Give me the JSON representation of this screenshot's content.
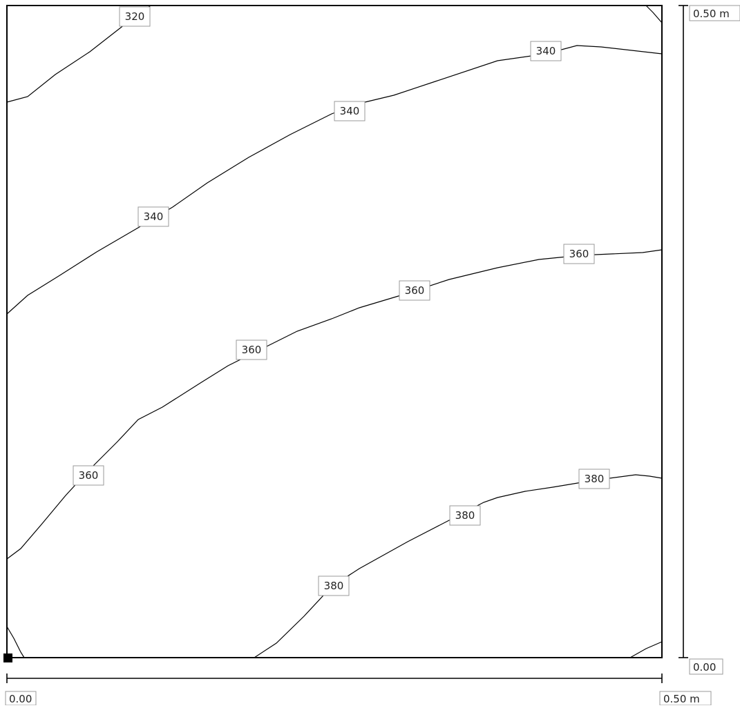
{
  "contours": [
    {
      "id": "c320-top",
      "label": "320",
      "points": [
        [
          10,
          148
        ],
        [
          40,
          140
        ],
        [
          80,
          108
        ],
        [
          130,
          75
        ],
        [
          185,
          32
        ],
        [
          218,
          8
        ]
      ],
      "label_pos": [
        195,
        24
      ]
    },
    {
      "id": "c340-upper",
      "label": "340",
      "points": [
        [
          10,
          455
        ],
        [
          40,
          428
        ],
        [
          85,
          400
        ],
        [
          140,
          365
        ],
        [
          200,
          330
        ],
        [
          250,
          300
        ],
        [
          300,
          265
        ],
        [
          360,
          228
        ],
        [
          420,
          195
        ],
        [
          480,
          165
        ],
        [
          520,
          150
        ],
        [
          570,
          138
        ],
        [
          630,
          118
        ],
        [
          720,
          88
        ],
        [
          790,
          78
        ],
        [
          835,
          66
        ],
        [
          870,
          68
        ],
        [
          958,
          78
        ]
      ],
      "label_pos": [
        790,
        74
      ]
    },
    {
      "id": "c360",
      "label": "360",
      "points": [
        [
          10,
          810
        ],
        [
          30,
          795
        ],
        [
          60,
          760
        ],
        [
          95,
          718
        ],
        [
          130,
          680
        ],
        [
          170,
          640
        ],
        [
          200,
          608
        ],
        [
          235,
          590
        ],
        [
          290,
          555
        ],
        [
          330,
          530
        ],
        [
          390,
          500
        ],
        [
          430,
          480
        ],
        [
          480,
          462
        ],
        [
          520,
          446
        ],
        [
          580,
          428
        ],
        [
          650,
          405
        ],
        [
          720,
          388
        ],
        [
          780,
          376
        ],
        [
          840,
          370
        ],
        [
          930,
          366
        ],
        [
          958,
          362
        ]
      ],
      "label_pos": [
        838,
        368
      ]
    },
    {
      "id": "c380",
      "label": "380",
      "points": [
        [
          368,
          953
        ],
        [
          400,
          932
        ],
        [
          440,
          893
        ],
        [
          480,
          850
        ],
        [
          520,
          824
        ],
        [
          590,
          785
        ],
        [
          650,
          754
        ],
        [
          700,
          728
        ],
        [
          720,
          721
        ],
        [
          760,
          712
        ],
        [
          800,
          706
        ],
        [
          860,
          696
        ],
        [
          920,
          688
        ],
        [
          940,
          690
        ],
        [
          958,
          693
        ]
      ],
      "label_pos": [
        860,
        694
      ]
    },
    {
      "id": "corner-bl",
      "label": "",
      "points": [
        [
          10,
          908
        ],
        [
          20,
          925
        ],
        [
          30,
          945
        ],
        [
          35,
          953
        ]
      ],
      "label_pos": null
    },
    {
      "id": "corner-tr",
      "label": "",
      "points": [
        [
          935,
          8
        ],
        [
          945,
          18
        ],
        [
          958,
          33
        ]
      ],
      "label_pos": null
    },
    {
      "id": "corner-br",
      "label": "",
      "points": [
        [
          912,
          953
        ],
        [
          935,
          940
        ],
        [
          958,
          930
        ]
      ],
      "label_pos": null
    }
  ],
  "inline_labels": [
    {
      "id": "lbl-340-a",
      "text": "340",
      "pos": [
        506,
        161
      ]
    },
    {
      "id": "lbl-340-b",
      "text": "340",
      "pos": [
        222,
        314
      ]
    },
    {
      "id": "lbl-360-a",
      "text": "360",
      "pos": [
        600,
        421
      ]
    },
    {
      "id": "lbl-360-b",
      "text": "360",
      "pos": [
        364,
        507
      ]
    },
    {
      "id": "lbl-360-c",
      "text": "360",
      "pos": [
        128,
        689
      ]
    },
    {
      "id": "lbl-380-a",
      "text": "380",
      "pos": [
        673,
        747
      ]
    },
    {
      "id": "lbl-380-b",
      "text": "380",
      "pos": [
        483,
        849
      ]
    }
  ],
  "axes": {
    "x_start_label": "0.00",
    "x_end_label": "0.50 m",
    "y_start_label": "0.00",
    "y_end_label": "0.50 m"
  }
}
